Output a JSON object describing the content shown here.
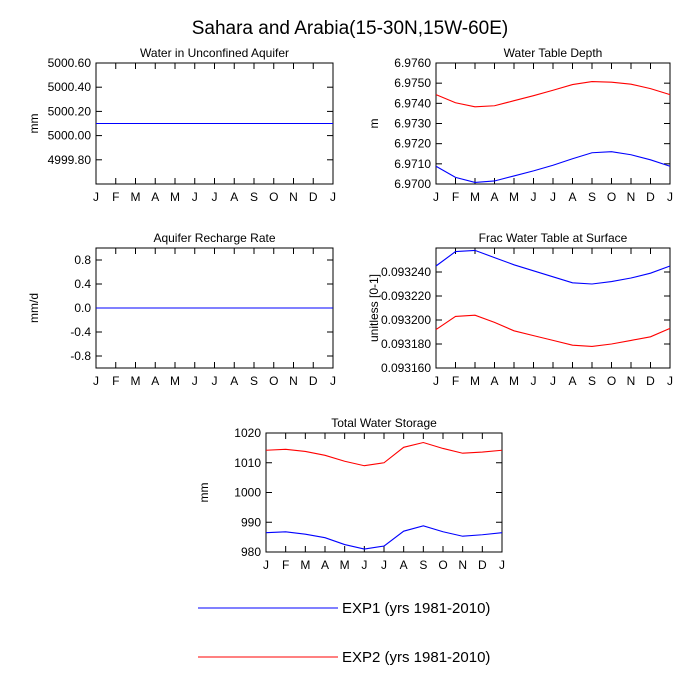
{
  "figure": {
    "title": "Sahara and Arabia(15-30N,15W-60E)"
  },
  "legend": {
    "items": [
      {
        "label": "EXP1 (yrs 1981-2010)",
        "color": "#0000ff"
      },
      {
        "label": "EXP2 (yrs 1981-2010)",
        "color": "#ff0000"
      }
    ]
  },
  "chart_data": [
    {
      "type": "line",
      "title": "Water in Unconfined Aquifer",
      "xlabel": "",
      "ylabel": "mm",
      "x": [
        "J",
        "F",
        "M",
        "A",
        "M",
        "J",
        "J",
        "A",
        "S",
        "O",
        "N",
        "D",
        "J"
      ],
      "ylim": [
        4999.6,
        5000.6
      ],
      "yticks": [
        4999.8,
        5000.0,
        5000.2,
        5000.4,
        5000.6
      ],
      "ytick_labels": [
        "4999.80",
        "5000.00",
        "5000.20",
        "5000.40",
        "5000.60"
      ],
      "series": [
        {
          "color": "#0000ff",
          "values": [
            5000.1,
            5000.1,
            5000.1,
            5000.1,
            5000.1,
            5000.1,
            5000.1,
            5000.1,
            5000.1,
            5000.1,
            5000.1,
            5000.1,
            5000.1
          ]
        },
        {
          "color": "#ff0000",
          "values": [
            5000.1,
            5000.1,
            5000.1,
            5000.1,
            5000.1,
            5000.1,
            5000.1,
            5000.1,
            5000.1,
            5000.1,
            5000.1,
            5000.1,
            5000.1
          ]
        }
      ]
    },
    {
      "type": "line",
      "title": "Water Table Depth",
      "xlabel": "",
      "ylabel": "m",
      "x": [
        "J",
        "F",
        "M",
        "A",
        "M",
        "J",
        "J",
        "A",
        "S",
        "O",
        "N",
        "D",
        "J"
      ],
      "ylim": [
        6.97,
        6.976
      ],
      "yticks": [
        6.97,
        6.971,
        6.972,
        6.973,
        6.974,
        6.975,
        6.976
      ],
      "ytick_labels": [
        "6.9700",
        "6.9710",
        "6.9720",
        "6.9730",
        "6.9740",
        "6.9750",
        "6.9760"
      ],
      "series": [
        {
          "color": "#0000ff",
          "values": [
            6.97088,
            6.97033,
            6.97008,
            6.97015,
            6.9704,
            6.97065,
            6.97093,
            6.97125,
            6.97155,
            6.9716,
            6.97145,
            6.9712,
            6.97088
          ]
        },
        {
          "color": "#ff0000",
          "values": [
            6.97443,
            6.97403,
            6.97383,
            6.97388,
            6.97413,
            6.97438,
            6.97465,
            6.97493,
            6.97508,
            6.97505,
            6.97495,
            6.97473,
            6.97443
          ]
        }
      ]
    },
    {
      "type": "line",
      "title": "Aquifer Recharge Rate",
      "xlabel": "",
      "ylabel": "mm/d",
      "x": [
        "J",
        "F",
        "M",
        "A",
        "M",
        "J",
        "J",
        "A",
        "S",
        "O",
        "N",
        "D",
        "J"
      ],
      "ylim": [
        -1.0,
        1.0
      ],
      "yticks": [
        -0.8,
        -0.4,
        0.0,
        0.4,
        0.8
      ],
      "ytick_labels": [
        "-0.8",
        "-0.4",
        "0.0",
        "0.4",
        "0.8"
      ],
      "series": [
        {
          "color": "#0000ff",
          "values": [
            0,
            0,
            0,
            0,
            0,
            0,
            0,
            0,
            0,
            0,
            0,
            0,
            0
          ]
        },
        {
          "color": "#ff0000",
          "values": [
            0,
            0,
            0,
            0,
            0,
            0,
            0,
            0,
            0,
            0,
            0,
            0,
            0
          ]
        }
      ]
    },
    {
      "type": "line",
      "title": "Frac Water Table at Surface",
      "xlabel": "",
      "ylabel": "unitless [0-1]",
      "x": [
        "J",
        "F",
        "M",
        "A",
        "M",
        "J",
        "J",
        "A",
        "S",
        "O",
        "N",
        "D",
        "J"
      ],
      "ylim": [
        0.09316,
        0.09326
      ],
      "yticks": [
        0.09316,
        0.09318,
        0.0932,
        0.09322,
        0.09324
      ],
      "ytick_labels": [
        "0.093160",
        "0.093180",
        "0.093200",
        "0.093220",
        "0.093240"
      ],
      "series": [
        {
          "color": "#0000ff",
          "values": [
            0.093245,
            0.093257,
            0.093258,
            0.093252,
            0.093246,
            0.093241,
            0.093236,
            0.093231,
            0.09323,
            0.093232,
            0.093235,
            0.093239,
            0.093245
          ]
        },
        {
          "color": "#ff0000",
          "values": [
            0.093192,
            0.093203,
            0.093204,
            0.093198,
            0.093191,
            0.093187,
            0.093183,
            0.093179,
            0.093178,
            0.09318,
            0.093183,
            0.093186,
            0.093193
          ]
        }
      ]
    },
    {
      "type": "line",
      "title": "Total Water Storage",
      "xlabel": "",
      "ylabel": "mm",
      "x": [
        "J",
        "F",
        "M",
        "A",
        "M",
        "J",
        "J",
        "A",
        "S",
        "O",
        "N",
        "D",
        "J"
      ],
      "ylim": [
        980,
        1020
      ],
      "yticks": [
        980,
        990,
        1000,
        1010,
        1020
      ],
      "ytick_labels": [
        "980",
        "990",
        "1000",
        "1010",
        "1020"
      ],
      "series": [
        {
          "color": "#0000ff",
          "values": [
            986.5,
            986.8,
            986.0,
            984.8,
            982.5,
            981.0,
            982.0,
            987.0,
            988.8,
            986.8,
            985.3,
            985.8,
            986.5
          ]
        },
        {
          "color": "#ff0000",
          "values": [
            1014.2,
            1014.5,
            1013.8,
            1012.5,
            1010.5,
            1009.0,
            1010.0,
            1015.2,
            1016.8,
            1014.8,
            1013.2,
            1013.6,
            1014.2
          ]
        }
      ]
    }
  ]
}
